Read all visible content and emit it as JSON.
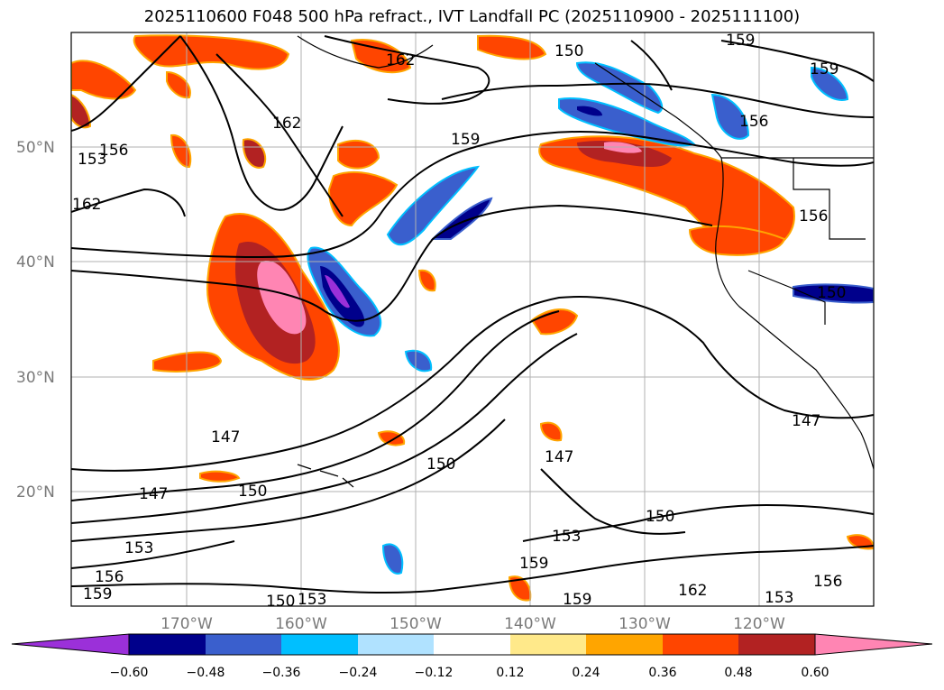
{
  "title": "2025110600 F048 500 hPa refract., IVT Landfall PC (2025110900 - 2025111100)",
  "map": {
    "lon_labels": [
      "170°W",
      "160°W",
      "150°W",
      "140°W",
      "130°W",
      "120°W"
    ],
    "lat_labels": [
      "50°N",
      "40°N",
      "30°N",
      "20°N"
    ],
    "contour_labels": [
      "159",
      "162",
      "153",
      "156",
      "159",
      "162",
      "147",
      "150",
      "147",
      "150",
      "153",
      "156",
      "159",
      "150",
      "147",
      "150",
      "153",
      "159",
      "162",
      "153",
      "156",
      "159",
      "156",
      "147",
      "150",
      "162",
      "159",
      "156",
      "150",
      "153"
    ]
  },
  "colorbar": {
    "ticks": [
      "−0.60",
      "−0.48",
      "−0.36",
      "−0.24",
      "−0.12",
      "0.12",
      "0.24",
      "0.36",
      "0.48",
      "0.60"
    ],
    "colors": [
      "#9b30d9",
      "#00008b",
      "#3a5fcd",
      "#00bfff",
      "#b0e2ff",
      "#ffffff",
      "#ffe98a",
      "#ffa500",
      "#ff4500",
      "#b22222",
      "#ff85b3"
    ]
  },
  "fill_colors": {
    "neg_strong": "#3a5fcd",
    "neg_deep": "#00008b",
    "neg_purple": "#9b30d9",
    "neg_light": "#00bfff",
    "pos_orange": "#ff4500",
    "pos_red": "#b22222",
    "pos_pink": "#ff85b3",
    "pos_yellow": "#ffe98a"
  }
}
